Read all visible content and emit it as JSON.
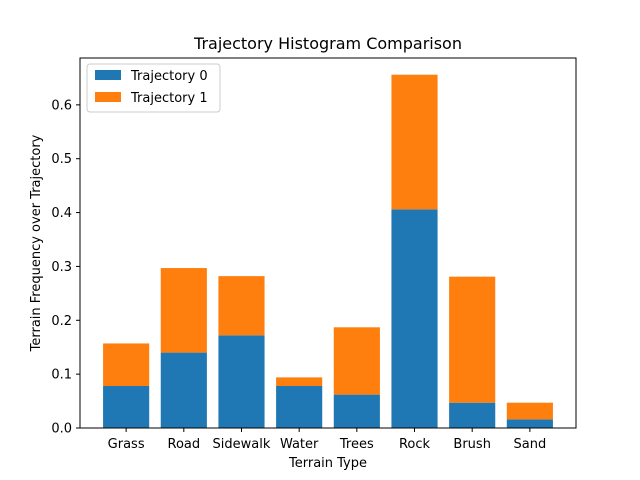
{
  "chart_data": {
    "type": "bar",
    "stacked": true,
    "title": "Trajectory Histogram Comparison",
    "xlabel": "Terrain Type",
    "ylabel": "Terrain Frequency over Trajectory",
    "categories": [
      "Grass",
      "Road",
      "Sidewalk",
      "Water",
      "Trees",
      "Rock",
      "Brush",
      "Sand"
    ],
    "series": [
      {
        "name": "Trajectory 0",
        "color": "#1f77b4",
        "values": [
          0.078,
          0.14,
          0.172,
          0.078,
          0.062,
          0.406,
          0.047,
          0.016
        ]
      },
      {
        "name": "Trajectory 1",
        "color": "#ff7f0e",
        "values": [
          0.079,
          0.157,
          0.11,
          0.016,
          0.125,
          0.25,
          0.234,
          0.031
        ]
      }
    ],
    "ylim": [
      0,
      0.687
    ],
    "yticks": [
      "0.0",
      "0.1",
      "0.2",
      "0.3",
      "0.4",
      "0.5",
      "0.6"
    ],
    "ytick_values": [
      0.0,
      0.1,
      0.2,
      0.3,
      0.4,
      0.5,
      0.6
    ],
    "legend_position": "top-left",
    "grid": false
  }
}
